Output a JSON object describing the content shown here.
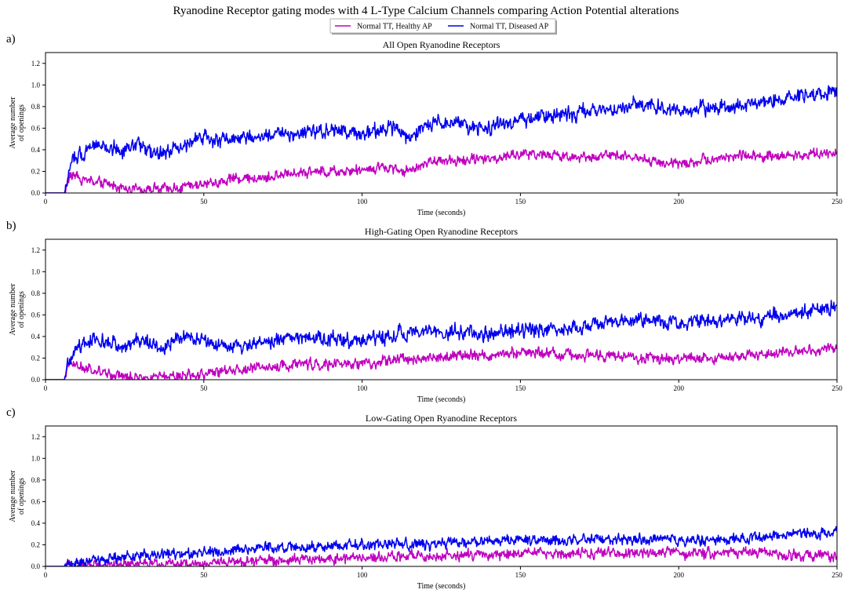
{
  "suptitle": "Ryanodine Receptor gating modes with 4 L-Type Calcium Channels comparing Action Potential alterations",
  "legend": {
    "placement": "top-center",
    "entries": [
      {
        "label": "Normal TT, Healthy AP",
        "color": "#bf00bf"
      },
      {
        "label": "Normal TT, Diseased AP",
        "color": "#0000ee"
      }
    ]
  },
  "colors": {
    "healthy": "#bf00bf",
    "diseased": "#0000ee"
  },
  "chart_data": [
    {
      "type": "line",
      "panel_letter": "a)",
      "title": "All Open Ryanodine Receptors",
      "xlabel": "Time (seconds)",
      "ylabel_lines": [
        "Average number",
        "of openings"
      ],
      "xlim": [
        0,
        250
      ],
      "ylim": [
        0,
        1.3
      ],
      "xticks": [
        0,
        50,
        100,
        150,
        200,
        250
      ],
      "yticks": [
        0.0,
        0.2,
        0.4,
        0.6,
        0.8,
        1.0,
        1.2
      ],
      "grid": false,
      "series": [
        {
          "name": "Normal TT, Healthy AP",
          "color": "#bf00bf",
          "x": [
            0,
            6,
            7,
            8,
            10,
            15,
            20,
            25,
            30,
            35,
            40,
            50,
            55,
            60,
            70,
            80,
            90,
            100,
            110,
            115,
            120,
            130,
            140,
            150,
            160,
            170,
            180,
            190,
            200,
            210,
            220,
            230,
            240,
            250
          ],
          "y": [
            0,
            0,
            0.1,
            0.18,
            0.15,
            0.1,
            0.08,
            0.05,
            0.04,
            0.03,
            0.04,
            0.08,
            0.1,
            0.13,
            0.14,
            0.2,
            0.2,
            0.22,
            0.24,
            0.2,
            0.28,
            0.3,
            0.32,
            0.36,
            0.35,
            0.33,
            0.36,
            0.3,
            0.27,
            0.32,
            0.35,
            0.33,
            0.36,
            0.38
          ]
        },
        {
          "name": "Normal TT, Diseased AP",
          "color": "#0000ee",
          "x": [
            0,
            6,
            7,
            8,
            10,
            15,
            20,
            25,
            30,
            35,
            40,
            50,
            55,
            60,
            70,
            80,
            90,
            100,
            110,
            115,
            120,
            130,
            140,
            150,
            160,
            170,
            180,
            190,
            200,
            210,
            220,
            230,
            240,
            250
          ],
          "y": [
            0,
            0,
            0.12,
            0.25,
            0.35,
            0.45,
            0.42,
            0.38,
            0.45,
            0.35,
            0.4,
            0.52,
            0.48,
            0.5,
            0.55,
            0.55,
            0.58,
            0.55,
            0.6,
            0.5,
            0.62,
            0.65,
            0.6,
            0.68,
            0.72,
            0.75,
            0.78,
            0.82,
            0.75,
            0.8,
            0.8,
            0.85,
            0.9,
            0.95
          ]
        }
      ]
    },
    {
      "type": "line",
      "panel_letter": "b)",
      "title": "High-Gating Open Ryanodine Receptors",
      "xlabel": "Time (seconds)",
      "ylabel_lines": [
        "Average number",
        "of openings"
      ],
      "xlim": [
        0,
        250
      ],
      "ylim": [
        0,
        1.3
      ],
      "xticks": [
        0,
        50,
        100,
        150,
        200,
        250
      ],
      "yticks": [
        0.0,
        0.2,
        0.4,
        0.6,
        0.8,
        1.0,
        1.2
      ],
      "grid": false,
      "series": [
        {
          "name": "Normal TT, Healthy AP",
          "color": "#bf00bf",
          "x": [
            0,
            6,
            7,
            8,
            10,
            15,
            20,
            25,
            30,
            35,
            40,
            50,
            55,
            60,
            70,
            80,
            90,
            100,
            110,
            120,
            130,
            140,
            150,
            160,
            170,
            180,
            190,
            200,
            210,
            220,
            230,
            240,
            250
          ],
          "y": [
            0,
            0,
            0.1,
            0.16,
            0.12,
            0.08,
            0.05,
            0.03,
            0.02,
            0.02,
            0.03,
            0.05,
            0.08,
            0.1,
            0.11,
            0.15,
            0.14,
            0.15,
            0.18,
            0.2,
            0.22,
            0.23,
            0.25,
            0.25,
            0.22,
            0.22,
            0.2,
            0.2,
            0.2,
            0.22,
            0.25,
            0.27,
            0.3
          ]
        },
        {
          "name": "Normal TT, Diseased AP",
          "color": "#0000ee",
          "x": [
            0,
            6,
            7,
            8,
            10,
            15,
            20,
            25,
            30,
            35,
            40,
            45,
            50,
            55,
            60,
            70,
            80,
            90,
            100,
            110,
            120,
            130,
            140,
            150,
            160,
            170,
            180,
            190,
            200,
            210,
            220,
            230,
            240,
            250
          ],
          "y": [
            0,
            0,
            0.1,
            0.2,
            0.3,
            0.4,
            0.35,
            0.3,
            0.38,
            0.28,
            0.35,
            0.4,
            0.38,
            0.33,
            0.3,
            0.35,
            0.4,
            0.38,
            0.36,
            0.42,
            0.45,
            0.45,
            0.42,
            0.45,
            0.48,
            0.5,
            0.52,
            0.55,
            0.52,
            0.55,
            0.55,
            0.6,
            0.62,
            0.68
          ]
        }
      ]
    },
    {
      "type": "line",
      "panel_letter": "c)",
      "title": "Low-Gating Open Ryanodine Receptors",
      "xlabel": "Time (seconds)",
      "ylabel_lines": [
        "Average number",
        "of openings"
      ],
      "xlim": [
        0,
        250
      ],
      "ylim": [
        0,
        1.3
      ],
      "xticks": [
        0,
        50,
        100,
        150,
        200,
        250
      ],
      "yticks": [
        0.0,
        0.2,
        0.4,
        0.6,
        0.8,
        1.0,
        1.2
      ],
      "grid": false,
      "series": [
        {
          "name": "Normal TT, Healthy AP",
          "color": "#bf00bf",
          "x": [
            0,
            6,
            10,
            20,
            30,
            40,
            50,
            60,
            70,
            80,
            90,
            100,
            110,
            120,
            130,
            140,
            150,
            160,
            170,
            180,
            190,
            200,
            210,
            220,
            230,
            240,
            250
          ],
          "y": [
            0,
            0,
            0.01,
            0.02,
            0.02,
            0.02,
            0.03,
            0.04,
            0.05,
            0.06,
            0.07,
            0.08,
            0.09,
            0.1,
            0.1,
            0.11,
            0.12,
            0.12,
            0.13,
            0.12,
            0.13,
            0.12,
            0.12,
            0.13,
            0.12,
            0.1,
            0.1
          ]
        },
        {
          "name": "Normal TT, Diseased AP",
          "color": "#0000ee",
          "x": [
            0,
            6,
            10,
            15,
            20,
            30,
            40,
            50,
            60,
            70,
            80,
            90,
            100,
            110,
            120,
            130,
            140,
            150,
            160,
            170,
            180,
            190,
            200,
            210,
            220,
            230,
            240,
            250
          ],
          "y": [
            0,
            0,
            0.03,
            0.05,
            0.07,
            0.1,
            0.12,
            0.13,
            0.15,
            0.18,
            0.18,
            0.18,
            0.2,
            0.2,
            0.2,
            0.22,
            0.23,
            0.24,
            0.24,
            0.25,
            0.25,
            0.25,
            0.24,
            0.25,
            0.26,
            0.28,
            0.3,
            0.32
          ]
        }
      ]
    }
  ]
}
